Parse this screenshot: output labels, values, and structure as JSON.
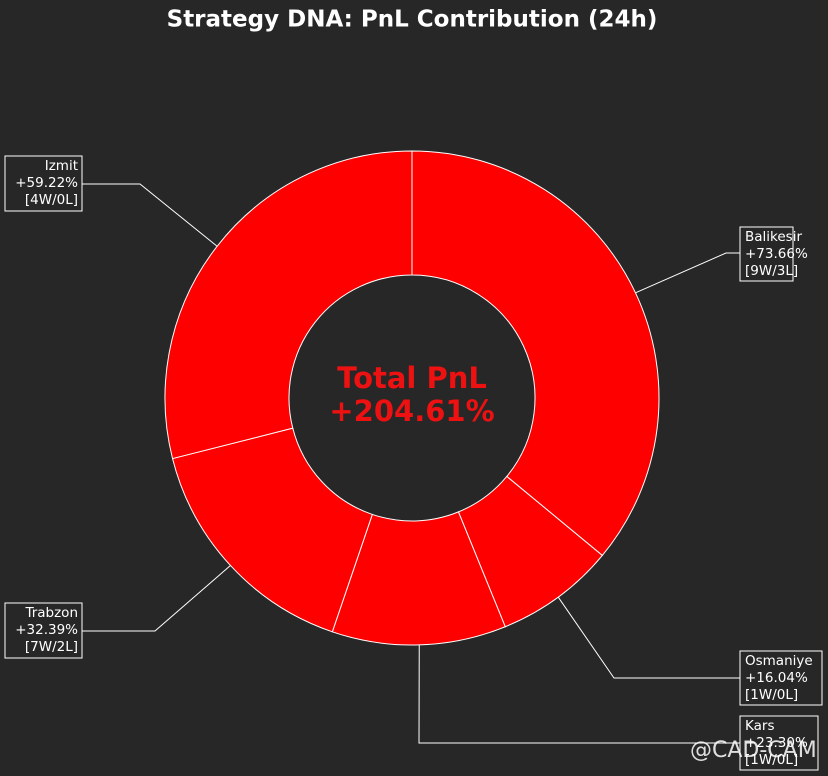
{
  "chart_data": {
    "type": "donut",
    "title": "Strategy DNA: PnL Contribution (24h)",
    "categories": [
      "Balikesir",
      "Osmaniye",
      "Kars",
      "Trabzon",
      "Izmit"
    ],
    "values": [
      73.66,
      16.04,
      23.3,
      32.39,
      59.22
    ],
    "value_labels": [
      "+73.66%",
      "+16.04%",
      "+23.30%",
      "+32.39%",
      "+59.22%"
    ],
    "records": [
      "[9W/3L]",
      "[1W/0L]",
      "[1W/0L]",
      "[7W/2L]",
      "[4W/0L]"
    ],
    "color": "#ff0000",
    "center_title": "Total PnL",
    "center_value": "+204.61%",
    "watermark": "@CAD-CAM"
  }
}
